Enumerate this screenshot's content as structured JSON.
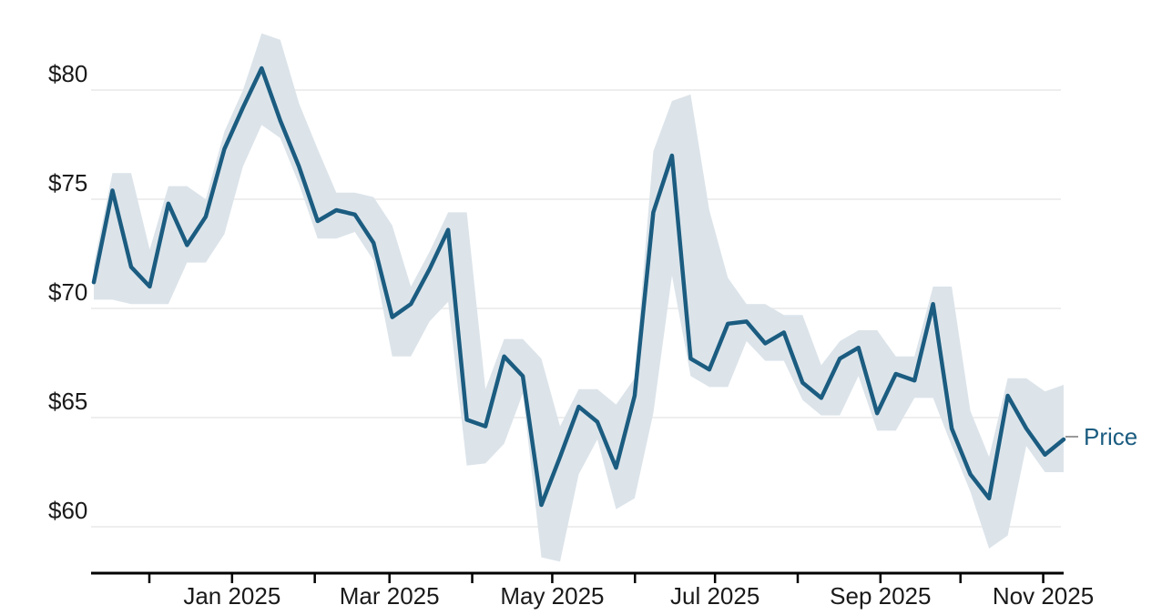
{
  "chart_data": {
    "type": "line",
    "title": "",
    "series_label": "Price",
    "x_axis": {
      "month_labels": [
        "",
        "Jan 2025",
        "",
        "Mar 2025",
        "",
        "May 2025",
        "",
        "Jul 2025",
        "",
        "Sep 2025",
        "",
        "Nov 2025"
      ],
      "visible_tick_labels": [
        "Jan 2025",
        "Mar 2025",
        "May 2025",
        "Jul 2025",
        "Sep 2025",
        "Nov 2025"
      ]
    },
    "y_axis": {
      "ticks": [
        {
          "value": 60,
          "label": "$60"
        },
        {
          "value": 65,
          "label": "$65"
        },
        {
          "value": 70,
          "label": "$70"
        },
        {
          "value": 75,
          "label": "$75"
        },
        {
          "value": 80,
          "label": "$80"
        }
      ],
      "range_shown": [
        58,
        83
      ],
      "grid": "horizontal-only"
    },
    "series": [
      {
        "name": "Price",
        "values": [
          71.2,
          75.4,
          71.9,
          71.0,
          74.8,
          72.9,
          74.2,
          77.3,
          79.2,
          81.0,
          78.6,
          76.5,
          74.0,
          74.5,
          74.3,
          73.0,
          69.6,
          70.2,
          71.8,
          73.6,
          64.9,
          64.6,
          67.8,
          66.9,
          61.0,
          63.2,
          65.5,
          64.8,
          62.7,
          66.0,
          74.4,
          77.0,
          67.7,
          67.2,
          69.3,
          69.4,
          68.4,
          68.9,
          66.6,
          65.9,
          67.7,
          68.2,
          65.2,
          67.0,
          66.7,
          70.2,
          64.5,
          62.4,
          61.3,
          66.0,
          64.5,
          63.3,
          64.0
        ]
      }
    ],
    "band": {
      "name": "confidence-band",
      "upper": [
        72.0,
        76.2,
        76.2,
        72.7,
        75.6,
        75.6,
        75.0,
        78.1,
        80.0,
        82.6,
        82.3,
        79.4,
        77.3,
        75.3,
        75.3,
        75.1,
        73.8,
        71.0,
        72.6,
        74.4,
        74.4,
        66.3,
        68.6,
        68.6,
        67.7,
        64.6,
        66.3,
        66.3,
        65.6,
        66.8,
        77.2,
        79.5,
        79.8,
        74.5,
        71.4,
        70.2,
        70.2,
        69.7,
        69.7,
        67.4,
        68.5,
        69.0,
        69.0,
        67.8,
        67.8,
        71.0,
        71.0,
        65.3,
        63.2,
        66.8,
        66.8,
        66.2,
        66.5
      ],
      "lower": [
        70.4,
        70.4,
        70.2,
        70.2,
        70.2,
        72.1,
        72.1,
        73.4,
        76.5,
        78.4,
        77.8,
        75.7,
        73.2,
        73.2,
        73.5,
        72.2,
        67.8,
        67.8,
        69.4,
        70.3,
        62.8,
        62.9,
        63.8,
        66.1,
        58.6,
        58.4,
        62.4,
        64.0,
        60.8,
        61.3,
        65.2,
        71.5,
        66.9,
        66.4,
        66.4,
        68.5,
        67.6,
        67.6,
        65.8,
        65.1,
        65.1,
        66.9,
        64.4,
        64.4,
        65.9,
        65.9,
        63.7,
        61.6,
        59.0,
        59.6,
        63.7,
        62.5,
        62.5
      ]
    },
    "legend_position": "right-of-line-end",
    "colors": {
      "line": "#1b5c80",
      "band_fill": "#dce4ea",
      "grid": "#e8e8e8",
      "axis": "#000000",
      "tick_label": "#1a1a1a",
      "legend_dash": "#9a9a9a"
    }
  }
}
